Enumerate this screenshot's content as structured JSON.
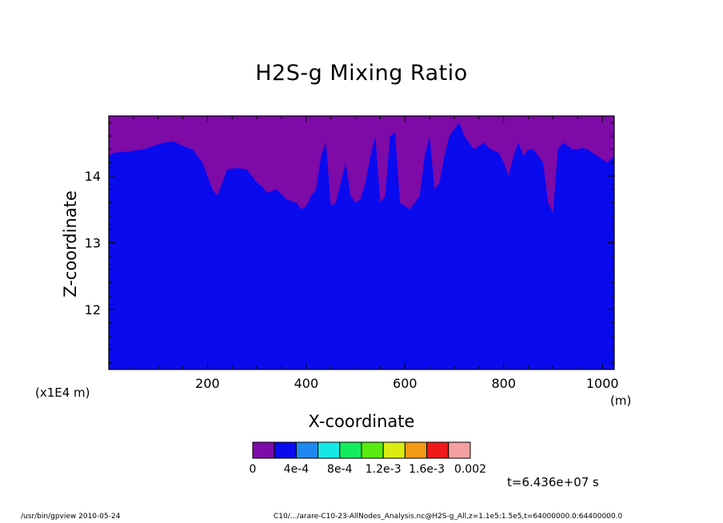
{
  "title": "H2S-g Mixing Ratio",
  "footer": {
    "left": "/usr/bin/gpview   2010-05-24",
    "right": "C10/.../arare-C10-23-AllNodes_Analysis.nc@H2S-g_All,z=1.1e5:1.5e5,t=64000000.0:64400000.0"
  },
  "time_label": "t=6.436e+07 s",
  "chart_data": {
    "type": "heatmap",
    "title": "H2S-g Mixing Ratio",
    "xlabel": "X-coordinate",
    "ylabel": "Z-coordinate",
    "x_unit_label": "(m)",
    "z_scale_label": "(x1E4 m)",
    "xlim": [
      0,
      1024
    ],
    "ylim": [
      11.1,
      14.9
    ],
    "x_ticks": [
      200,
      400,
      600,
      800,
      1000
    ],
    "x_tick_labels": [
      "200",
      "400",
      "600",
      "800",
      "1000"
    ],
    "y_ticks": [
      12,
      13,
      14
    ],
    "y_tick_labels": [
      "12",
      "13",
      "14"
    ],
    "colorbar": {
      "colors": [
        "#7e0aa8",
        "#0a0aee",
        "#1e88f0",
        "#16e8e8",
        "#14ec60",
        "#58ec10",
        "#dcec10",
        "#f49a14",
        "#f01818",
        "#f4a0a0"
      ],
      "boundaries": [
        0,
        0.0002,
        0.0004,
        0.0006,
        0.0008,
        0.001,
        0.0012,
        0.0014,
        0.0016,
        0.0018,
        0.002
      ],
      "tick_labels": [
        "0",
        "4e-4",
        "8e-4",
        "1.2e-3",
        "1.6e-3",
        "0.002"
      ]
    },
    "regions": [
      {
        "name": "0 – 2e-4",
        "color": "#7e0aa8",
        "description_level": "upper band"
      },
      {
        "name": "2e-4 – 4e-4",
        "color": "#0a0aee",
        "description_level": "lower field"
      }
    ],
    "boundary_x": [
      0,
      10,
      30,
      50,
      70,
      90,
      110,
      130,
      150,
      170,
      190,
      200,
      210,
      220,
      240,
      260,
      280,
      290,
      300,
      310,
      320,
      340,
      360,
      380,
      390,
      400,
      410,
      420,
      430,
      440,
      450,
      460,
      470,
      480,
      490,
      500,
      510,
      520,
      530,
      540,
      550,
      560,
      570,
      580,
      590,
      600,
      610,
      620,
      630,
      640,
      650,
      660,
      670,
      680,
      690,
      700,
      710,
      720,
      730,
      740,
      750,
      760,
      770,
      780,
      790,
      800,
      810,
      820,
      830,
      840,
      850,
      860,
      870,
      880,
      890,
      900,
      910,
      920,
      930,
      940,
      950,
      960,
      970,
      980,
      990,
      1000,
      1010,
      1024
    ],
    "boundary_z": [
      14.3,
      14.35,
      14.36,
      14.38,
      14.4,
      14.45,
      14.5,
      14.52,
      14.45,
      14.4,
      14.2,
      14.0,
      13.8,
      13.7,
      14.1,
      14.12,
      14.1,
      14.0,
      13.9,
      13.85,
      13.75,
      13.8,
      13.65,
      13.6,
      13.5,
      13.55,
      13.7,
      13.8,
      14.3,
      14.5,
      13.55,
      13.6,
      13.9,
      14.2,
      13.7,
      13.6,
      13.65,
      13.9,
      14.3,
      14.6,
      13.6,
      13.7,
      14.6,
      14.65,
      13.6,
      13.55,
      13.5,
      13.6,
      13.7,
      14.3,
      14.6,
      13.8,
      13.9,
      14.3,
      14.6,
      14.7,
      14.8,
      14.6,
      14.5,
      14.4,
      14.45,
      14.5,
      14.42,
      14.38,
      14.35,
      14.2,
      14.0,
      14.3,
      14.5,
      14.3,
      14.4,
      14.4,
      14.3,
      14.2,
      13.6,
      13.45,
      14.4,
      14.5,
      14.45,
      14.4,
      14.4,
      14.42,
      14.4,
      14.35,
      14.3,
      14.25,
      14.2,
      14.3
    ]
  }
}
